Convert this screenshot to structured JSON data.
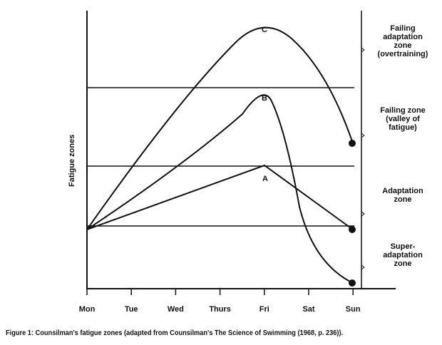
{
  "y_axis_label": "Fatigue zones",
  "x_ticks": [
    "Mon",
    "Tue",
    "Wed",
    "Thurs",
    "Fri",
    "Sat",
    "Sun"
  ],
  "zones": [
    "Failing\nadaptation\nzone\n(overtraining)",
    "Failing zone\n(valley of\nfatigue)",
    "Adaptation\nzone",
    "Super-\nadaptation\nzone"
  ],
  "curves": [
    {
      "label": "C",
      "peak_day": "Fri",
      "end_day": "Sun",
      "peak_zone": "Failing adaptation zone",
      "end_zone": "Failing zone"
    },
    {
      "label": "B",
      "peak_day": "Fri",
      "end_day": "Sun",
      "peak_zone": "Failing zone",
      "end_zone": "Super-adaptation zone"
    },
    {
      "label": "A",
      "peak_day": "Fri",
      "end_day": "Sun",
      "peak_zone": "Adaptation zone",
      "end_zone": "Adaptation zone"
    }
  ],
  "caption": "Figure 1: Counsilman's fatigue zones (adapted from Counsilman's The Science of Swimming (1968, p. 236))."
}
